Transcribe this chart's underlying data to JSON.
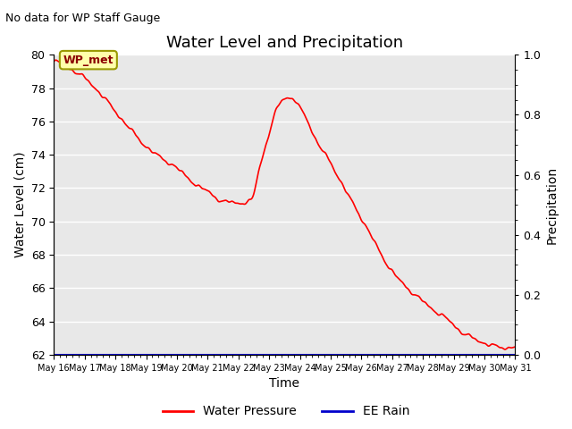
{
  "title": "Water Level and Precipitation",
  "subtitle": "No data for WP Staff Gauge",
  "xlabel": "Time",
  "ylabel_left": "Water Level (cm)",
  "ylabel_right": "Precipitation",
  "annotation_label": "WP_met",
  "ylim_left": [
    62,
    80
  ],
  "ylim_right": [
    0.0,
    1.0
  ],
  "yticks_left": [
    62,
    64,
    66,
    68,
    70,
    72,
    74,
    76,
    78,
    80
  ],
  "yticks_right": [
    0.0,
    0.2,
    0.4,
    0.6,
    0.8,
    1.0
  ],
  "x_tick_labels": [
    "May 16",
    "May 17",
    "May 18",
    "May 19",
    "May 20",
    "May 21",
    "May 22",
    "May 23",
    "May 24",
    "May 25",
    "May 26",
    "May 27",
    "May 28",
    "May 29",
    "May 30",
    "May 31"
  ],
  "water_pressure_color": "#ff0000",
  "ee_rain_color": "#0000cc",
  "background_color": "#e8e8e8",
  "figure_background": "#ffffff",
  "legend_water_pressure": "Water Pressure",
  "legend_ee_rain": "EE Rain",
  "grid_color": "#ffffff",
  "key_points_x": [
    0,
    0.3,
    0.5,
    1.0,
    1.5,
    2.0,
    2.5,
    3.0,
    3.5,
    4.0,
    4.3,
    4.5,
    4.7,
    5.0,
    5.3,
    5.5,
    5.8,
    6.0,
    6.2,
    6.35,
    6.5,
    6.6,
    6.8,
    7.0,
    7.2,
    7.4,
    7.5,
    7.6,
    7.7,
    7.8,
    8.0,
    8.2,
    8.5,
    9.0,
    9.5,
    10.0,
    10.5,
    11.0,
    11.5,
    12.0,
    12.5,
    13.0,
    13.3,
    13.5,
    14.0,
    15.0
  ],
  "key_points_y": [
    79.6,
    79.4,
    79.2,
    78.6,
    77.7,
    76.6,
    75.5,
    74.5,
    73.8,
    73.2,
    72.7,
    72.4,
    72.1,
    71.8,
    71.4,
    71.2,
    71.15,
    71.1,
    71.15,
    71.2,
    71.6,
    72.5,
    74.0,
    75.3,
    76.5,
    77.2,
    77.4,
    77.45,
    77.4,
    77.35,
    76.8,
    76.2,
    75.0,
    73.5,
    71.8,
    70.2,
    68.5,
    67.0,
    66.0,
    65.2,
    64.5,
    63.8,
    63.3,
    63.1,
    62.7,
    62.5
  ]
}
